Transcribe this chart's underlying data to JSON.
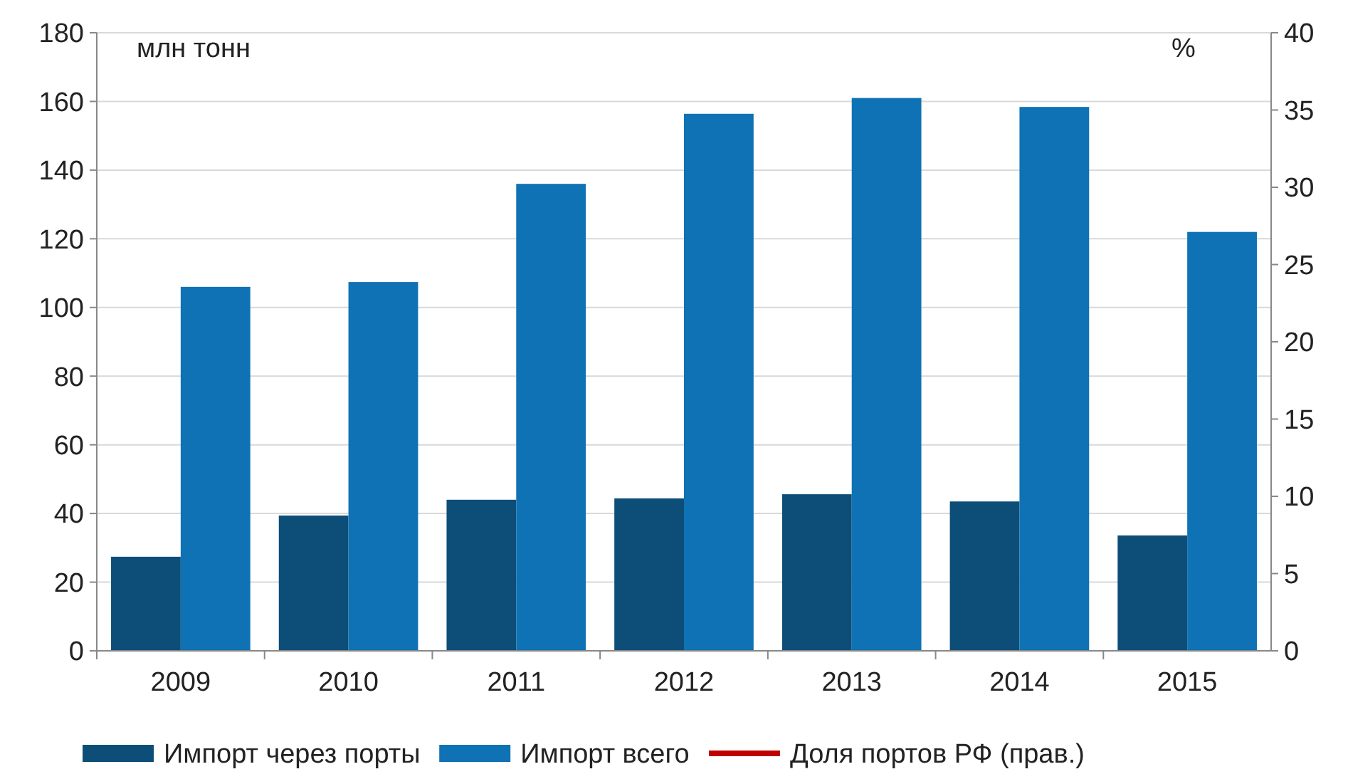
{
  "chart_data": {
    "type": "bar",
    "ylabel": "млн тонн",
    "y2label": "%",
    "categories": [
      "2009",
      "2010",
      "2011",
      "2012",
      "2013",
      "2014",
      "2015"
    ],
    "series": [
      {
        "name": "Импорт через порты",
        "color": "#0c4e78",
        "values": [
          27.4,
          39.4,
          44,
          44.4,
          45.6,
          43.5,
          33.6
        ]
      },
      {
        "name": "Импорт всего",
        "color": "#0f72b4",
        "values": [
          106,
          107.4,
          136,
          156.4,
          161,
          158.4,
          122
        ]
      },
      {
        "name": "Доля портов РФ (прав.)",
        "color": "#c00000",
        "type": "line",
        "values": [
          null,
          null,
          null,
          null,
          null,
          null,
          null
        ]
      }
    ],
    "ylim": [
      0,
      180
    ],
    "yticks": [
      0,
      20,
      40,
      60,
      80,
      100,
      120,
      140,
      160,
      180
    ],
    "y2lim": [
      0,
      40
    ],
    "y2ticks": [
      0,
      5,
      10,
      15,
      20,
      25,
      30,
      35,
      40
    ],
    "grid": "y",
    "legend": "bottom"
  }
}
